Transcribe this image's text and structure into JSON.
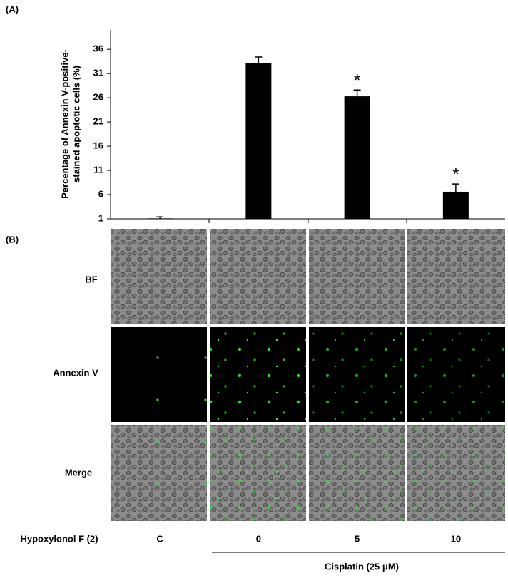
{
  "panel_labels": [
    "(A)",
    "(B)"
  ],
  "image_rows": [
    "BF",
    "Annexin V",
    "Merge"
  ],
  "treatment_label": "Hypoxylonol F (2)",
  "cisplatin_label": "Cisplatin (25 μM)",
  "chart_data": {
    "type": "bar",
    "ylabel": [
      "Percentage of Annexin V-positive-",
      "stained apoptotic cells (%)"
    ],
    "categories": [
      "C",
      "0",
      "5",
      "10"
    ],
    "values": [
      1.1,
      33.2,
      26.3,
      6.6
    ],
    "errors": [
      0.3,
      1.2,
      1.3,
      1.6
    ],
    "significance": [
      null,
      null,
      "*",
      "*"
    ],
    "color": "#000000",
    "ylim": [
      1,
      40
    ],
    "yticks": [
      1,
      6,
      11,
      16,
      21,
      26,
      31,
      36
    ]
  }
}
